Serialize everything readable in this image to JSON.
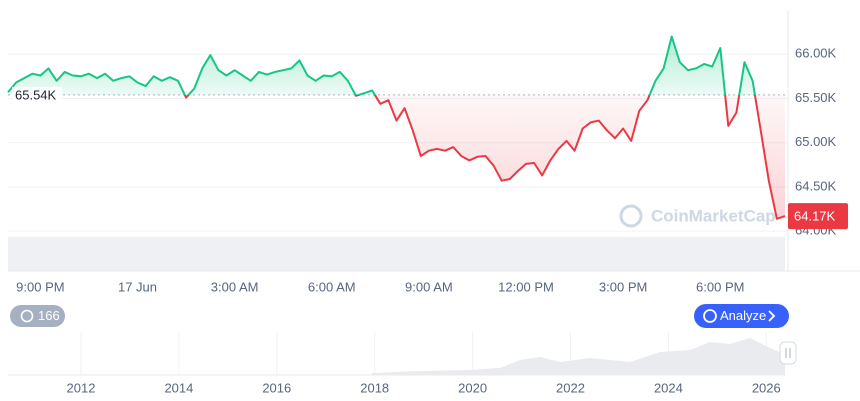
{
  "chart_data": {
    "type": "line",
    "x": [
      20,
      20.25,
      20.5,
      20.75,
      21,
      21.25,
      21.5,
      21.75,
      22,
      22.25,
      22.5,
      22.75,
      23,
      23.25,
      23.5,
      23.75,
      24,
      24.25,
      24.5,
      24.75,
      25,
      25.25,
      25.5,
      25.75,
      26,
      26.25,
      26.5,
      26.75,
      27,
      27.25,
      27.5,
      27.75,
      28,
      28.25,
      28.5,
      28.75,
      29,
      29.25,
      29.5,
      29.75,
      30,
      30.25,
      30.5,
      30.75,
      31,
      31.25,
      31.5,
      31.75,
      32,
      32.25,
      32.5,
      32.75,
      33,
      33.25,
      33.5,
      33.75,
      34,
      34.25,
      34.5,
      34.75,
      35,
      35.25,
      35.5,
      35.75,
      36,
      36.25,
      36.5,
      36.75,
      37,
      37.25,
      37.5,
      37.75,
      38,
      38.25,
      38.5,
      38.75,
      39,
      39.25,
      39.5,
      39.75,
      40,
      40.25,
      40.5,
      40.75,
      41,
      41.25,
      41.5,
      41.75,
      42,
      42.25,
      42.5,
      42.75,
      43,
      43.25,
      43.5,
      43.75,
      44
    ],
    "values": [
      65570,
      65680,
      65730,
      65780,
      65760,
      65840,
      65700,
      65800,
      65760,
      65750,
      65780,
      65730,
      65780,
      65700,
      65730,
      65750,
      65680,
      65640,
      65750,
      65700,
      65740,
      65700,
      65510,
      65610,
      65840,
      65990,
      65820,
      65760,
      65820,
      65760,
      65700,
      65800,
      65770,
      65800,
      65820,
      65840,
      65930,
      65760,
      65700,
      65760,
      65750,
      65800,
      65700,
      65530,
      65560,
      65590,
      65440,
      65480,
      65250,
      65390,
      65140,
      64850,
      64910,
      64930,
      64910,
      64950,
      64850,
      64800,
      64840,
      64850,
      64740,
      64570,
      64590,
      64680,
      64760,
      64770,
      64630,
      64800,
      64930,
      65020,
      64910,
      65160,
      65230,
      65250,
      65140,
      65050,
      65160,
      65020,
      65360,
      65480,
      65700,
      65840,
      66200,
      65910,
      65820,
      65840,
      65890,
      65860,
      66070,
      65190,
      65340,
      65910,
      65700,
      65140,
      64570,
      64140,
      64170
    ],
    "xlim": [
      20,
      44
    ],
    "xticks": [
      {
        "value": 21,
        "label": "9:00 PM"
      },
      {
        "value": 24,
        "label": "17 Jun"
      },
      {
        "value": 27,
        "label": "3:00 AM"
      },
      {
        "value": 30,
        "label": "6:00 AM"
      },
      {
        "value": 33,
        "label": "9:00 AM"
      },
      {
        "value": 36,
        "label": "12:00 PM"
      },
      {
        "value": 39,
        "label": "3:00 PM"
      },
      {
        "value": 42,
        "label": "6:00 PM"
      }
    ],
    "ylim": [
      63900,
      66500
    ],
    "yticks": [
      {
        "value": 64000,
        "label": "64.00K"
      },
      {
        "value": 64500,
        "label": "64.50K"
      },
      {
        "value": 65000,
        "label": "65.00K"
      },
      {
        "value": 65500,
        "label": "65.50K"
      },
      {
        "value": 66000,
        "label": "66.00K"
      }
    ],
    "baseline": {
      "value": 65540,
      "label": "65.54K"
    },
    "last_value_label": "64.17K",
    "up_color": "#16c784",
    "down_color": "#ea3943",
    "grid": true,
    "watermark": "CoinMarketCap"
  },
  "controls": {
    "history_count": "166",
    "analyze": "Analyze"
  },
  "navigator": {
    "year_labels": [
      "2012",
      "2014",
      "2016",
      "2018",
      "2020",
      "2022",
      "2024",
      "2026"
    ]
  }
}
